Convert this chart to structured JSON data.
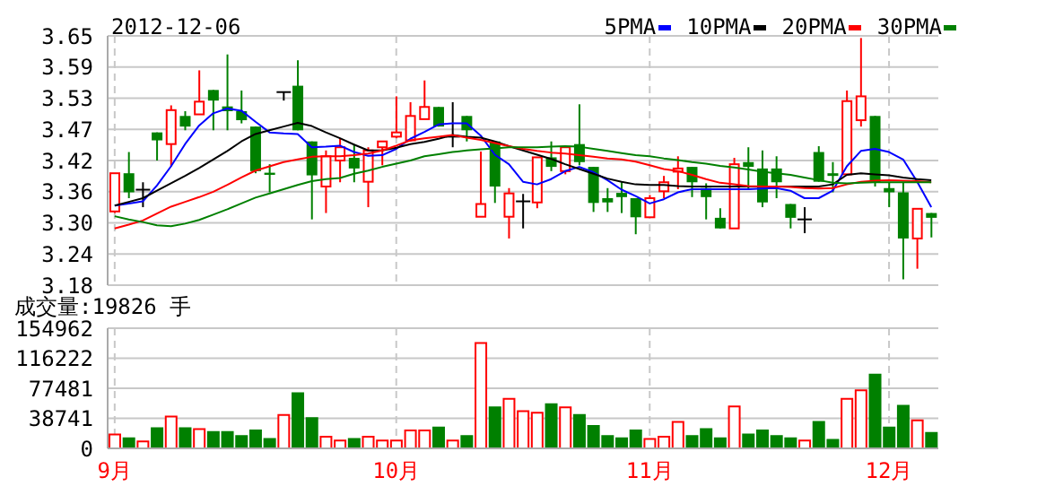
{
  "chart_data": [
    {
      "type": "candlestick",
      "title": "2012-12-06",
      "categories": [
        null,
        null,
        null,
        null,
        null,
        null,
        null,
        null,
        null,
        null,
        null,
        null,
        null,
        null,
        null,
        null,
        null,
        null,
        null,
        null,
        null,
        null,
        null,
        null,
        null,
        null,
        null,
        null,
        null,
        null,
        null,
        null,
        null,
        null,
        null,
        null,
        null,
        null,
        null,
        null,
        null,
        null,
        null,
        null,
        null,
        null,
        null,
        null,
        null,
        null,
        null,
        null,
        null,
        null,
        null,
        null,
        null,
        null,
        null
      ],
      "ohlc": [
        [
          3.319,
          3.391,
          3.316,
          3.391
        ],
        [
          3.391,
          3.431,
          3.344,
          3.355
        ],
        [
          3.36,
          3.374,
          3.327,
          3.36
        ],
        [
          3.468,
          3.468,
          3.415,
          3.453
        ],
        [
          3.446,
          3.519,
          3.404,
          3.51
        ],
        [
          3.499,
          3.508,
          3.472,
          3.479
        ],
        [
          3.502,
          3.585,
          3.502,
          3.526
        ],
        [
          3.548,
          3.548,
          3.472,
          3.528
        ],
        [
          3.517,
          3.615,
          3.472,
          3.508
        ],
        [
          3.508,
          3.547,
          3.485,
          3.491
        ],
        [
          3.479,
          3.479,
          3.391,
          3.395
        ],
        [
          3.392,
          3.408,
          3.355,
          3.388
        ],
        [
          3.544,
          3.544,
          3.528,
          3.544
        ],
        [
          3.556,
          3.604,
          3.472,
          3.472
        ],
        [
          3.451,
          3.451,
          3.304,
          3.387
        ],
        [
          3.366,
          3.434,
          3.316,
          3.423
        ],
        [
          3.415,
          3.457,
          3.374,
          3.44
        ],
        [
          3.42,
          3.446,
          3.374,
          3.4
        ],
        [
          3.375,
          3.44,
          3.327,
          3.434
        ],
        [
          3.44,
          3.451,
          3.406,
          3.451
        ],
        [
          3.46,
          3.536,
          3.457,
          3.468
        ],
        [
          3.453,
          3.525,
          3.451,
          3.499
        ],
        [
          3.493,
          3.566,
          3.493,
          3.516
        ],
        [
          3.516,
          3.516,
          3.479,
          3.479
        ],
        [
          3.46,
          3.525,
          3.44,
          3.46
        ],
        [
          3.499,
          3.499,
          3.451,
          3.472
        ],
        [
          3.309,
          3.432,
          3.309,
          3.333
        ],
        [
          3.451,
          3.451,
          3.335,
          3.366
        ],
        [
          3.309,
          3.363,
          3.268,
          3.353
        ],
        [
          3.338,
          3.352,
          3.287,
          3.338
        ],
        [
          3.336,
          3.421,
          3.325,
          3.421
        ],
        [
          3.421,
          3.451,
          3.395,
          3.403
        ],
        [
          3.395,
          3.44,
          3.389,
          3.44
        ],
        [
          3.446,
          3.521,
          3.406,
          3.412
        ],
        [
          3.403,
          3.403,
          3.318,
          3.335
        ],
        [
          3.344,
          3.363,
          3.318,
          3.336
        ],
        [
          3.354,
          3.374,
          3.316,
          3.346
        ],
        [
          3.344,
          3.344,
          3.276,
          3.308
        ],
        [
          3.308,
          3.35,
          3.308,
          3.344
        ],
        [
          3.357,
          3.386,
          3.344,
          3.374
        ],
        [
          3.394,
          3.423,
          3.361,
          3.4
        ],
        [
          3.403,
          3.403,
          3.346,
          3.374
        ],
        [
          3.363,
          3.372,
          3.304,
          3.346
        ],
        [
          3.307,
          3.325,
          3.287,
          3.287
        ],
        [
          3.287,
          3.42,
          3.287,
          3.408
        ],
        [
          3.412,
          3.44,
          3.361,
          3.403
        ],
        [
          3.4,
          3.434,
          3.327,
          3.336
        ],
        [
          3.4,
          3.423,
          3.344,
          3.374
        ],
        [
          3.333,
          3.333,
          3.287,
          3.307
        ],
        [
          3.304,
          3.327,
          3.278,
          3.304
        ],
        [
          3.431,
          3.442,
          3.375,
          3.375
        ],
        [
          3.391,
          3.412,
          3.355,
          3.386
        ],
        [
          3.389,
          3.547,
          3.389,
          3.527
        ],
        [
          3.491,
          3.646,
          3.479,
          3.536
        ],
        [
          3.499,
          3.499,
          3.366,
          3.374
        ],
        [
          3.363,
          3.374,
          3.327,
          3.355
        ],
        [
          3.355,
          3.374,
          3.191,
          3.268
        ],
        [
          3.268,
          3.324,
          3.211,
          3.324
        ],
        [
          3.316,
          3.316,
          3.27,
          3.307
        ]
      ],
      "colors": [
        "#ff0000",
        "#008000",
        "#000000",
        "#008000",
        "#ff0000",
        "#008000",
        "#ff0000",
        "#008000",
        "#008000",
        "#008000",
        "#008000",
        "#008000",
        "#000000",
        "#008000",
        "#008000",
        "#ff0000",
        "#ff0000",
        "#008000",
        "#ff0000",
        "#ff0000",
        "#ff0000",
        "#ff0000",
        "#ff0000",
        "#008000",
        "#000000",
        "#008000",
        "#ff0000",
        "#008000",
        "#ff0000",
        "#000000",
        "#ff0000",
        "#008000",
        "#ff0000",
        "#008000",
        "#008000",
        "#008000",
        "#008000",
        "#008000",
        "#ff0000",
        "#ff0000",
        "#ff0000",
        "#008000",
        "#008000",
        "#008000",
        "#ff0000",
        "#008000",
        "#008000",
        "#008000",
        "#008000",
        "#000000",
        "#008000",
        "#008000",
        "#ff0000",
        "#ff0000",
        "#008000",
        "#008000",
        "#008000",
        "#ff0000",
        "#008000"
      ],
      "series": [
        {
          "name": "5PMA",
          "type": "line",
          "color": "#0000ff",
          "values": [
            3.33,
            3.334,
            3.338,
            3.368,
            3.404,
            3.446,
            3.481,
            3.504,
            3.513,
            3.509,
            3.488,
            3.468,
            3.466,
            3.465,
            3.44,
            3.441,
            3.443,
            3.431,
            3.424,
            3.425,
            3.437,
            3.456,
            3.469,
            3.483,
            3.485,
            3.485,
            3.462,
            3.426,
            3.408,
            3.375,
            3.37,
            3.38,
            3.395,
            3.403,
            3.393,
            3.378,
            3.36,
            3.348,
            3.334,
            3.342,
            3.355,
            3.361,
            3.361,
            3.361,
            3.361,
            3.361,
            3.362,
            3.363,
            3.358,
            3.344,
            3.344,
            3.358,
            3.404,
            3.433,
            3.437,
            3.431,
            3.417,
            3.375,
            3.327
          ]
        },
        {
          "name": "10PMA",
          "type": "line",
          "color": "#000000",
          "values": [
            3.33,
            3.337,
            3.344,
            3.358,
            3.372,
            3.386,
            3.401,
            3.417,
            3.433,
            3.451,
            3.465,
            3.472,
            3.479,
            3.486,
            3.48,
            3.468,
            3.457,
            3.445,
            3.434,
            3.434,
            3.439,
            3.446,
            3.45,
            3.456,
            3.463,
            3.46,
            3.458,
            3.451,
            3.442,
            3.434,
            3.426,
            3.418,
            3.408,
            3.399,
            3.39,
            3.381,
            3.375,
            3.37,
            3.369,
            3.369,
            3.367,
            3.366,
            3.366,
            3.366,
            3.366,
            3.366,
            3.366,
            3.366,
            3.366,
            3.366,
            3.366,
            3.37,
            3.388,
            3.391,
            3.389,
            3.387,
            3.383,
            3.38,
            3.378
          ]
        },
        {
          "name": "20PMA",
          "type": "line",
          "color": "#ff0000",
          "values": [
            3.287,
            3.294,
            3.302,
            3.315,
            3.328,
            3.337,
            3.346,
            3.356,
            3.369,
            3.383,
            3.396,
            3.404,
            3.412,
            3.417,
            3.422,
            3.423,
            3.423,
            3.425,
            3.428,
            3.434,
            3.443,
            3.453,
            3.457,
            3.46,
            3.463,
            3.458,
            3.454,
            3.448,
            3.442,
            3.437,
            3.433,
            3.43,
            3.428,
            3.425,
            3.422,
            3.419,
            3.417,
            3.413,
            3.406,
            3.399,
            3.395,
            3.388,
            3.38,
            3.373,
            3.37,
            3.367,
            3.366,
            3.366,
            3.365,
            3.363,
            3.362,
            3.363,
            3.37,
            3.375,
            3.377,
            3.378,
            3.377,
            3.376,
            3.374
          ]
        },
        {
          "name": "30PMA",
          "type": "line",
          "color": "#008000",
          "values": [
            3.31,
            3.304,
            3.299,
            3.293,
            3.291,
            3.296,
            3.303,
            3.313,
            3.323,
            3.334,
            3.345,
            3.353,
            3.361,
            3.369,
            3.376,
            3.38,
            3.382,
            3.39,
            3.396,
            3.403,
            3.409,
            3.415,
            3.423,
            3.427,
            3.431,
            3.434,
            3.436,
            3.438,
            3.44,
            3.44,
            3.44,
            3.441,
            3.442,
            3.441,
            3.437,
            3.433,
            3.429,
            3.425,
            3.423,
            3.419,
            3.416,
            3.412,
            3.409,
            3.405,
            3.402,
            3.398,
            3.394,
            3.391,
            3.388,
            3.383,
            3.378,
            3.373,
            3.372,
            3.373,
            3.374,
            3.374,
            3.374,
            3.374,
            3.374
          ]
        }
      ],
      "ylim": [
        3.18,
        3.65
      ],
      "yticks": [
        3.18,
        {
          "value": 3.23875,
          "label": "3.24"
        },
        {
          "value": 3.2975,
          "label": "3.30"
        },
        {
          "value": 3.35625,
          "label": "3.36"
        },
        {
          "value": 3.415,
          "label": "3.42"
        },
        {
          "value": 3.47375,
          "label": "3.47"
        },
        {
          "value": 3.5325,
          "label": "3.53"
        },
        {
          "value": 3.59125,
          "label": "3.59"
        },
        3.65
      ],
      "grid": true,
      "legend": "top right",
      "tick_labels": "y",
      "marker": "none"
    },
    {
      "type": "bar",
      "title": "成交量:19826 手",
      "categories": [
        "9月",
        null,
        null,
        null,
        null,
        null,
        null,
        null,
        null,
        null,
        null,
        null,
        null,
        null,
        null,
        null,
        null,
        null,
        null,
        null,
        "10月",
        null,
        null,
        null,
        null,
        null,
        null,
        null,
        null,
        null,
        null,
        null,
        null,
        null,
        null,
        null,
        null,
        null,
        "11月",
        null,
        null,
        null,
        null,
        null,
        null,
        null,
        null,
        null,
        null,
        null,
        null,
        null,
        null,
        null,
        null,
        "12月",
        null,
        null,
        null
      ],
      "values": [
        18000,
        13000,
        9000,
        26000,
        41000,
        26000,
        25000,
        21000,
        21000,
        16000,
        23000,
        12000,
        43000,
        71000,
        39000,
        15000,
        10000,
        12000,
        15000,
        10000,
        10000,
        23000,
        23000,
        27000,
        10000,
        16000,
        136000,
        53000,
        64000,
        48000,
        46000,
        57000,
        53000,
        43000,
        29000,
        16000,
        13000,
        23000,
        12000,
        15000,
        34000,
        16000,
        25000,
        13000,
        54000,
        18000,
        23000,
        16000,
        13000,
        10000,
        34000,
        11000,
        64000,
        75000,
        95000,
        27000,
        55000,
        36000,
        19826
      ],
      "colors": [
        "#ff0000",
        "#008000",
        "#ff0000",
        "#008000",
        "#ff0000",
        "#008000",
        "#ff0000",
        "#008000",
        "#008000",
        "#008000",
        "#008000",
        "#008000",
        "#ff0000",
        "#008000",
        "#008000",
        "#ff0000",
        "#ff0000",
        "#008000",
        "#ff0000",
        "#ff0000",
        "#ff0000",
        "#ff0000",
        "#ff0000",
        "#008000",
        "#ff0000",
        "#008000",
        "#ff0000",
        "#008000",
        "#ff0000",
        "#ff0000",
        "#ff0000",
        "#008000",
        "#ff0000",
        "#008000",
        "#008000",
        "#008000",
        "#008000",
        "#008000",
        "#ff0000",
        "#ff0000",
        "#ff0000",
        "#008000",
        "#008000",
        "#008000",
        "#ff0000",
        "#008000",
        "#008000",
        "#008000",
        "#008000",
        "#ff0000",
        "#008000",
        "#008000",
        "#ff0000",
        "#ff0000",
        "#008000",
        "#008000",
        "#008000",
        "#ff0000",
        "#008000"
      ],
      "ylim": [
        0,
        154962
      ],
      "yticks": [
        0,
        38741,
        77481,
        116222,
        154962
      ],
      "grid": true
    }
  ]
}
